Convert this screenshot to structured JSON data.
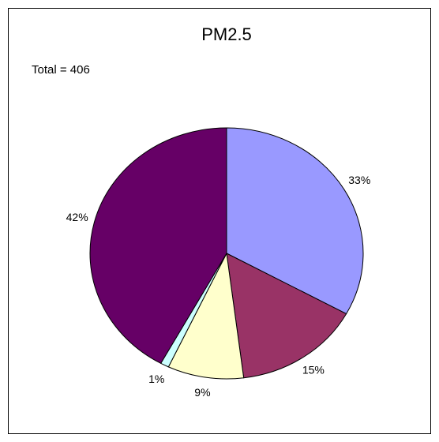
{
  "chart_data": {
    "type": "pie",
    "title": "PM2.5",
    "annotation": "Total = 406",
    "categories": [
      null,
      null,
      null,
      null,
      null
    ],
    "values": [
      33,
      15,
      9,
      1,
      42
    ],
    "value_labels": [
      "33%",
      "15%",
      "9%",
      "1%",
      "42%"
    ],
    "colors": [
      "#9999ff",
      "#993366",
      "#ffffcc",
      "#ccffff",
      "#660066"
    ]
  }
}
